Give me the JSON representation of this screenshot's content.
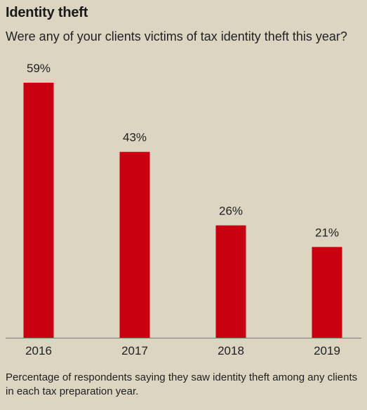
{
  "title": "Identity theft",
  "subtitle": "Were any of your clients victims of tax identity theft this year?",
  "caption": "Percentage of respondents saying they saw identity theft among any clients in each tax preparation year.",
  "colors": {
    "background": "#dbd5c1",
    "bar": "#c8000f",
    "axis": "#8a8a8a"
  },
  "chart_data": {
    "type": "bar",
    "categories": [
      "2016",
      "2017",
      "2018",
      "2019"
    ],
    "values": [
      59,
      43,
      26,
      21
    ],
    "value_labels": [
      "59%",
      "43%",
      "26%",
      "21%"
    ],
    "ylim": [
      0,
      59
    ],
    "grid": false,
    "legend": "none"
  }
}
